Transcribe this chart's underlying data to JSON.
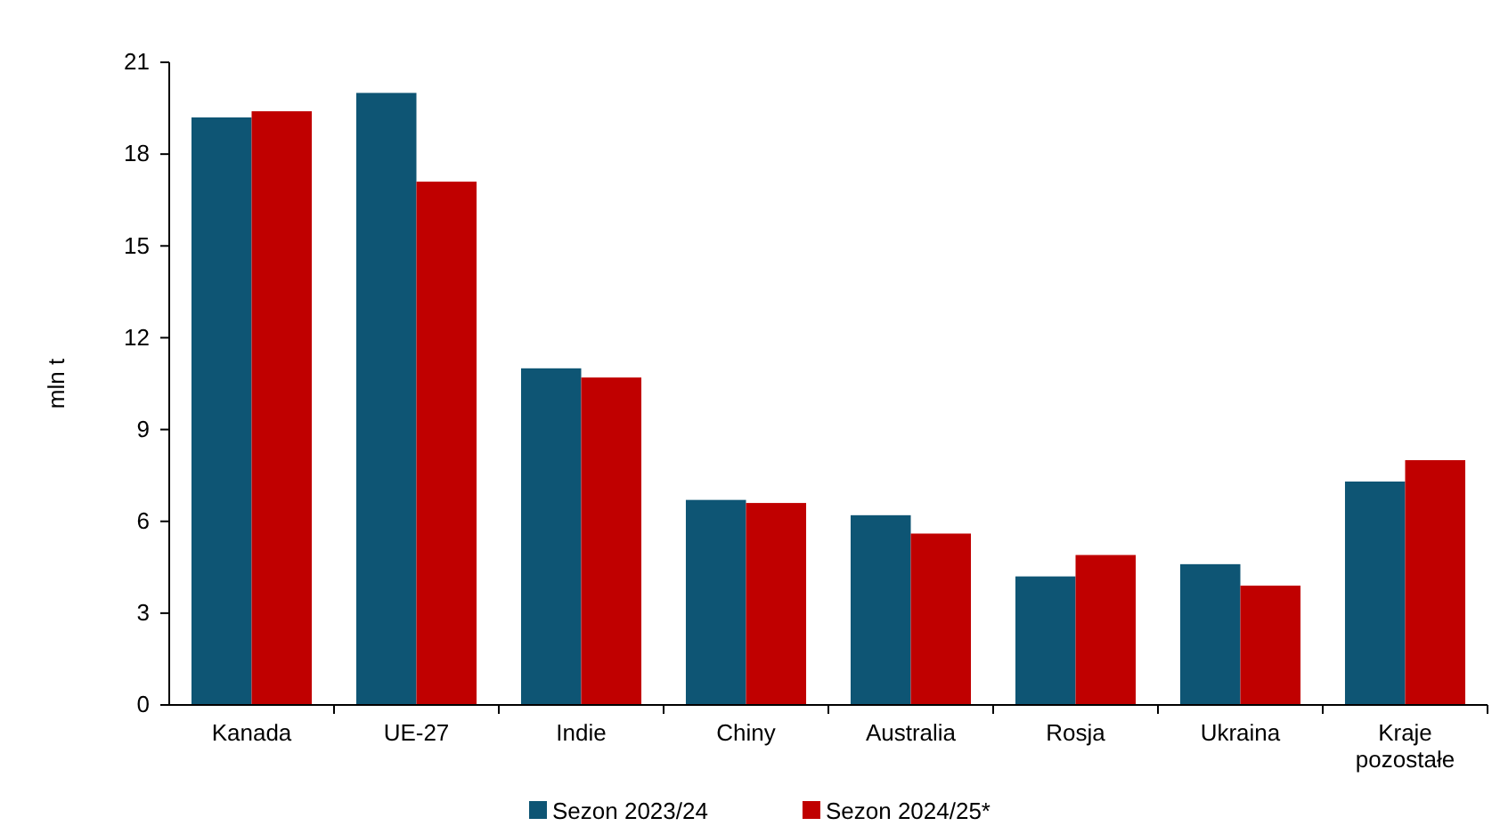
{
  "chart_data": {
    "type": "bar",
    "ylabel": "mln t",
    "categories": [
      "Kanada",
      "UE-27",
      "Indie",
      "Chiny",
      "Australia",
      "Rosja",
      "Ukraina",
      "Kraje pozostałe"
    ],
    "series": [
      {
        "name": "Sezon 2023/24",
        "color": "#0e5574",
        "values": [
          19.2,
          20.0,
          11.0,
          6.7,
          6.2,
          4.2,
          4.6,
          7.3
        ]
      },
      {
        "name": "Sezon 2024/25*",
        "color": "#c00000",
        "values": [
          19.4,
          17.1,
          10.7,
          6.6,
          5.6,
          4.9,
          3.9,
          8.0
        ]
      }
    ],
    "ylim": [
      0,
      21
    ],
    "yticks": [
      0,
      3,
      6,
      9,
      12,
      15,
      18,
      21
    ],
    "grid": false,
    "legend": "bottom"
  }
}
